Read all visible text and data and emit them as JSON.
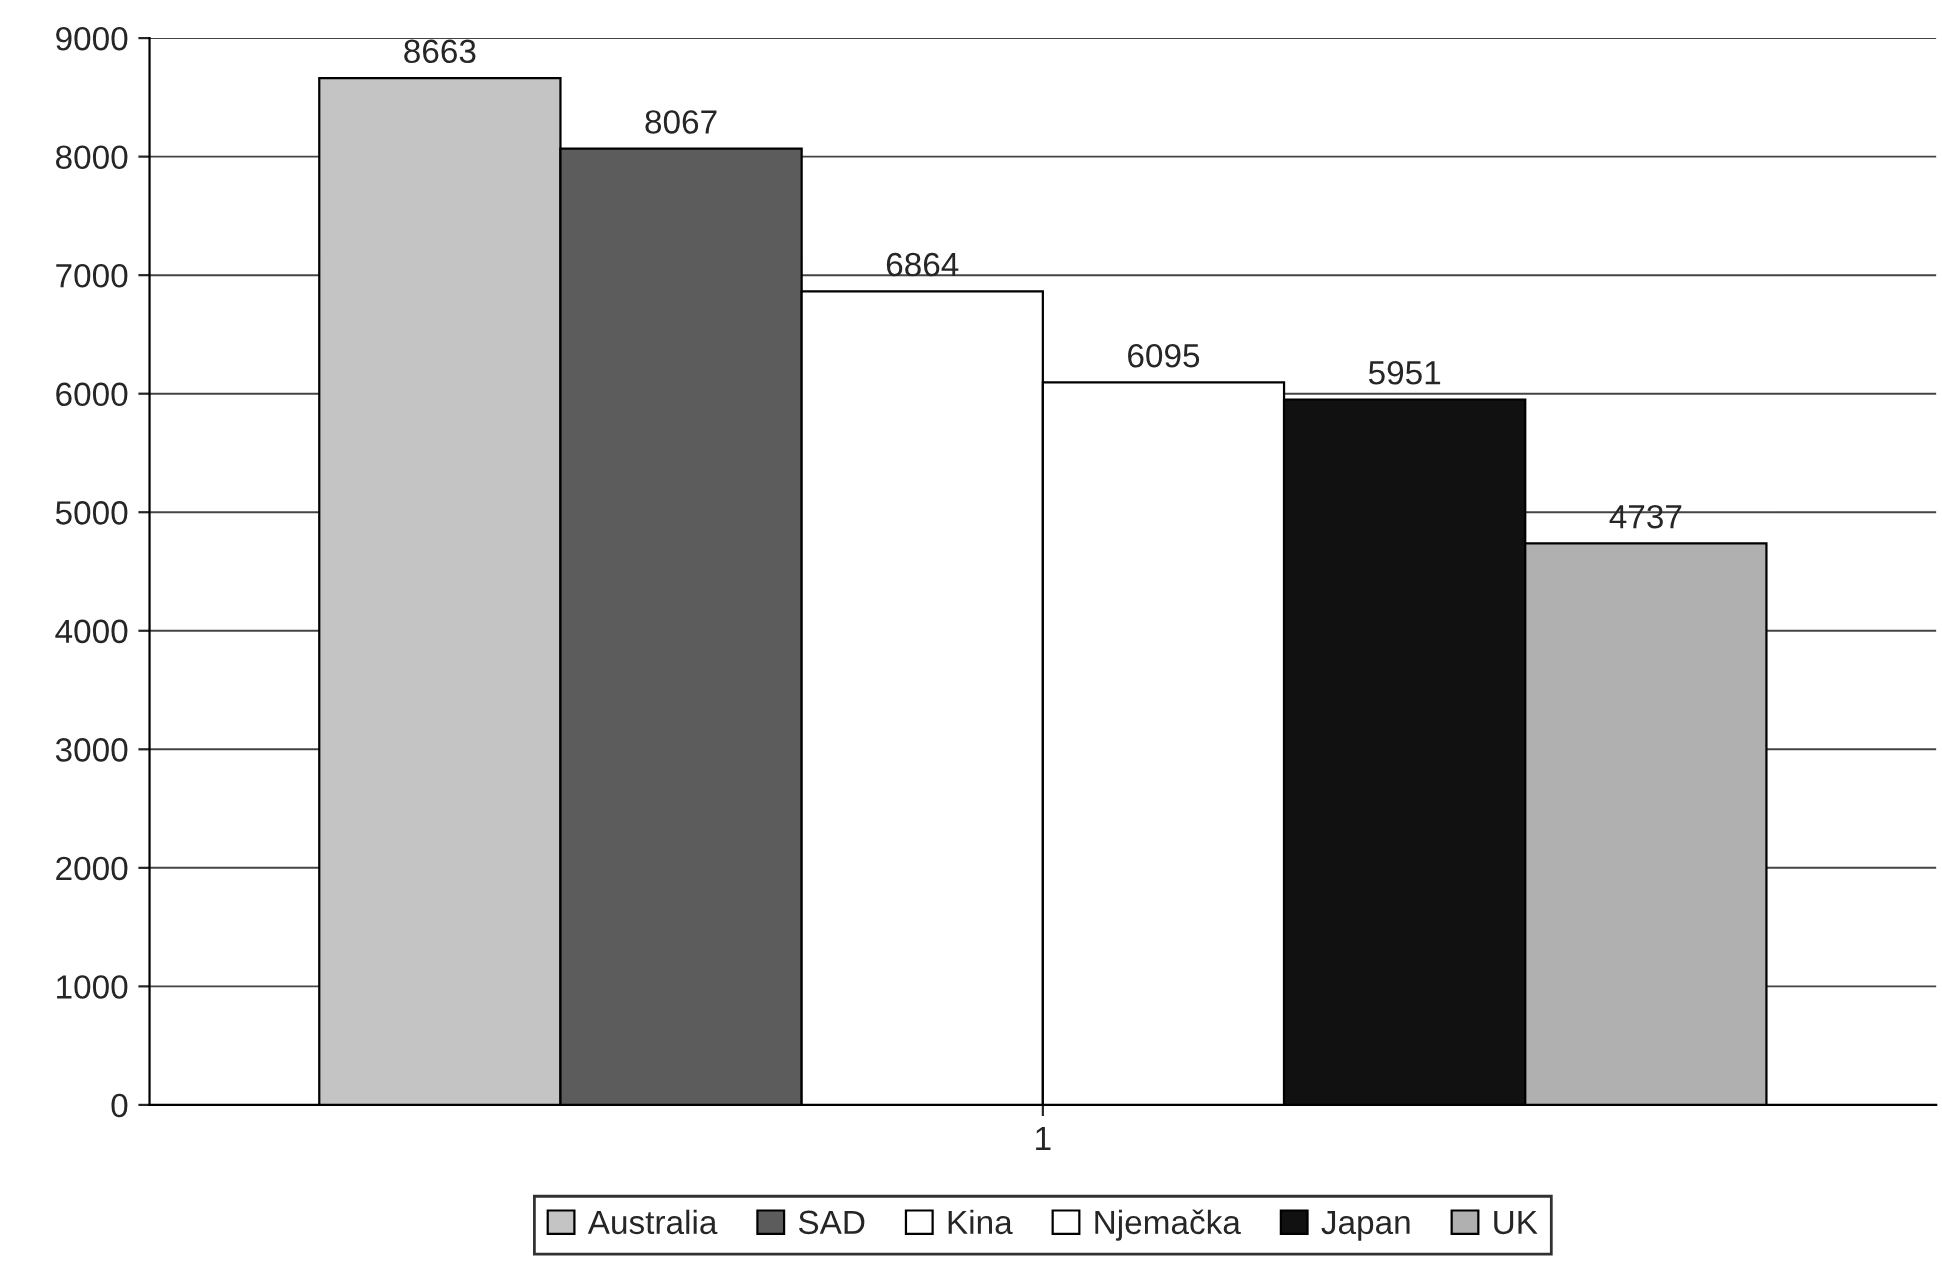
{
  "chart_data": {
    "type": "bar",
    "categories": [
      "1"
    ],
    "series": [
      {
        "name": "Australia",
        "color": "#c4c4c4",
        "values": [
          8663
        ]
      },
      {
        "name": "SAD",
        "color": "#5c5c5c",
        "values": [
          8067
        ]
      },
      {
        "name": "Kina",
        "color": "#ffffff",
        "values": [
          6864
        ]
      },
      {
        "name": "Njemačka",
        "color": "#ffffff",
        "values": [
          6095
        ]
      },
      {
        "name": "Japan",
        "color": "#111111",
        "values": [
          5951
        ]
      },
      {
        "name": "UK",
        "color": "#b0b0b0",
        "values": [
          4737
        ]
      }
    ],
    "ylim": [
      0,
      9000
    ],
    "yticks": [
      0,
      1000,
      2000,
      3000,
      4000,
      5000,
      6000,
      7000,
      8000,
      9000
    ],
    "grid": "y",
    "legend": "bottom",
    "data_labels": true
  }
}
